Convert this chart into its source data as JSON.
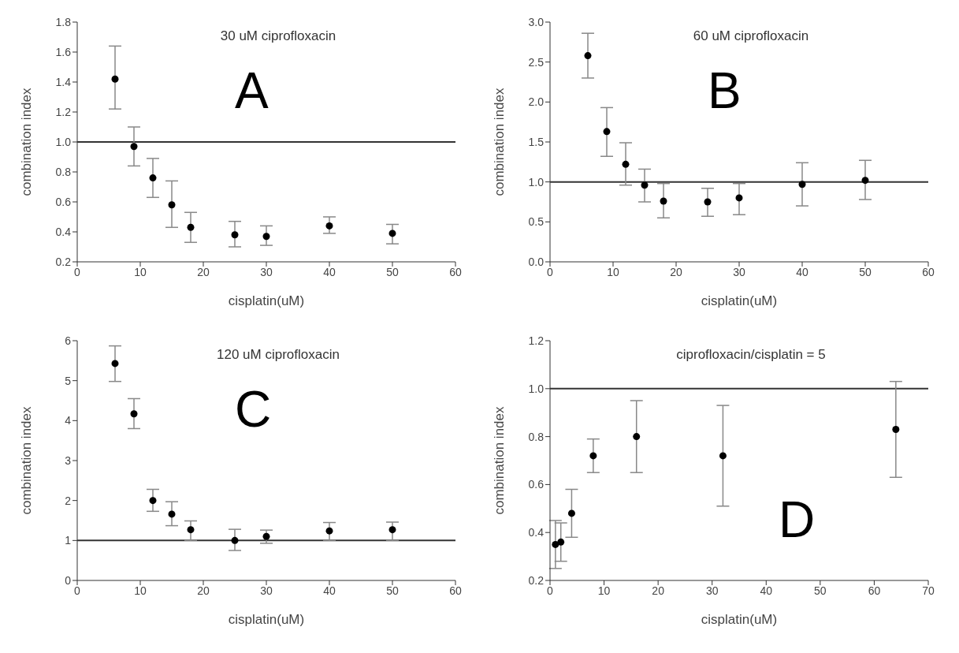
{
  "chart_data": [
    {
      "type": "scatter",
      "title": "30 uM ciprofloxacin",
      "annotations": [
        "A"
      ],
      "xlabel": "cisplatin(uM)",
      "ylabel": "combination index",
      "marker": "circle",
      "x": [
        6,
        9,
        12,
        15,
        18,
        25,
        30,
        40,
        50
      ],
      "values": [
        1.42,
        0.97,
        0.76,
        0.58,
        0.43,
        0.38,
        0.37,
        0.44,
        0.39
      ],
      "color": "#000000",
      "errors": [
        [
          1.22,
          1.64
        ],
        [
          0.84,
          1.1
        ],
        [
          0.63,
          0.89
        ],
        [
          0.43,
          0.74
        ],
        [
          0.33,
          0.53
        ],
        [
          0.3,
          0.47
        ],
        [
          0.31,
          0.44
        ],
        [
          0.39,
          0.5
        ],
        [
          0.32,
          0.45
        ]
      ],
      "xlim": [
        0,
        60
      ],
      "xticks": [
        0,
        10,
        20,
        30,
        40,
        50,
        60
      ],
      "ylim": [
        0.2,
        1.8
      ],
      "yticks": [
        {
          "value": 0.2,
          "label": "0.2"
        },
        {
          "value": 0.4,
          "label": "0.4"
        },
        {
          "value": 0.6,
          "label": "0.6"
        },
        {
          "value": 0.8,
          "label": "0.8"
        },
        {
          "value": 1.0,
          "label": "1.0"
        },
        {
          "value": 1.2,
          "label": "1.2"
        },
        {
          "value": 1.4,
          "label": "1.4"
        },
        {
          "value": 1.6,
          "label": "1.6"
        },
        {
          "value": 1.8,
          "label": "1.8"
        }
      ],
      "ref_lines": [
        {
          "axis": "y",
          "value": 1,
          "color": "#333333"
        }
      ]
    },
    {
      "type": "scatter",
      "title": "60 uM ciprofloxacin",
      "annotations": [
        "B"
      ],
      "xlabel": "cisplatin(uM)",
      "ylabel": "combination index",
      "marker": "circle",
      "x": [
        6,
        9,
        12,
        15,
        18,
        25,
        30,
        40,
        50
      ],
      "values": [
        2.58,
        1.63,
        1.22,
        0.96,
        0.76,
        0.75,
        0.8,
        0.97,
        1.02
      ],
      "color": "#000000",
      "errors": [
        [
          2.3,
          2.86
        ],
        [
          1.32,
          1.93
        ],
        [
          0.96,
          1.49
        ],
        [
          0.75,
          1.16
        ],
        [
          0.55,
          0.98
        ],
        [
          0.57,
          0.92
        ],
        [
          0.59,
          0.98
        ],
        [
          0.7,
          1.24
        ],
        [
          0.78,
          1.27
        ]
      ],
      "xlim": [
        0,
        60
      ],
      "xticks": [
        0,
        10,
        20,
        30,
        40,
        50,
        60
      ],
      "ylim": [
        0,
        3
      ],
      "yticks": [
        {
          "value": 0,
          "label": "0.0"
        },
        {
          "value": 0.5,
          "label": "0.5"
        },
        {
          "value": 1,
          "label": "1.0"
        },
        {
          "value": 1.5,
          "label": "1.5"
        },
        {
          "value": 2,
          "label": "2.0"
        },
        {
          "value": 2.5,
          "label": "2.5"
        },
        {
          "value": 3,
          "label": "3.0"
        }
      ],
      "ref_lines": [
        {
          "axis": "y",
          "value": 1,
          "color": "#333333"
        }
      ]
    },
    {
      "type": "scatter",
      "title": "120 uM ciprofloxacin",
      "annotations": [
        "C"
      ],
      "xlabel": "cisplatin(uM)",
      "ylabel": "combination index",
      "marker": "circle",
      "x": [
        6,
        9,
        12,
        15,
        18,
        25,
        30,
        40,
        50
      ],
      "values": [
        5.43,
        4.17,
        2.0,
        1.66,
        1.27,
        1.0,
        1.1,
        1.24,
        1.27
      ],
      "color": "#000000",
      "errors": [
        [
          4.98,
          5.87
        ],
        [
          3.8,
          4.55
        ],
        [
          1.73,
          2.28
        ],
        [
          1.37,
          1.97
        ],
        [
          1.0,
          1.49
        ],
        [
          0.75,
          1.28
        ],
        [
          0.93,
          1.26
        ],
        [
          1.0,
          1.45
        ],
        [
          1.0,
          1.46
        ]
      ],
      "xlim": [
        0,
        60
      ],
      "xticks": [
        0,
        10,
        20,
        30,
        40,
        50,
        60
      ],
      "ylim": [
        0,
        6
      ],
      "yticks": [
        0,
        1,
        2,
        3,
        4,
        5,
        6
      ],
      "ref_lines": [
        {
          "axis": "y",
          "value": 1,
          "color": "#333333"
        }
      ]
    },
    {
      "type": "scatter",
      "title": "ciprofloxacin/cisplatin = 5",
      "annotations": [
        "D"
      ],
      "xlabel": "cisplatin(uM)",
      "ylabel": "combination index",
      "marker": "circle",
      "x": [
        1,
        2,
        4,
        8,
        16,
        32,
        64
      ],
      "values": [
        0.35,
        0.36,
        0.48,
        0.72,
        0.8,
        0.72,
        0.83
      ],
      "color": "#000000",
      "errors": [
        [
          0.25,
          0.45
        ],
        [
          0.28,
          0.44
        ],
        [
          0.38,
          0.58
        ],
        [
          0.65,
          0.79
        ],
        [
          0.65,
          0.95
        ],
        [
          0.51,
          0.93
        ],
        [
          0.63,
          1.03
        ]
      ],
      "xlim": [
        0,
        70
      ],
      "xticks": [
        0,
        10,
        20,
        30,
        40,
        50,
        60,
        70
      ],
      "ylim": [
        0.2,
        1.2
      ],
      "yticks": [
        {
          "value": 0.2,
          "label": "0.2"
        },
        {
          "value": 0.4,
          "label": "0.4"
        },
        {
          "value": 0.6,
          "label": "0.6"
        },
        {
          "value": 0.8,
          "label": "0.8"
        },
        {
          "value": 1.0,
          "label": "1.0"
        },
        {
          "value": 1.2,
          "label": "1.2"
        }
      ],
      "ref_lines": [
        {
          "axis": "y",
          "value": 1,
          "color": "#333333"
        }
      ]
    }
  ]
}
